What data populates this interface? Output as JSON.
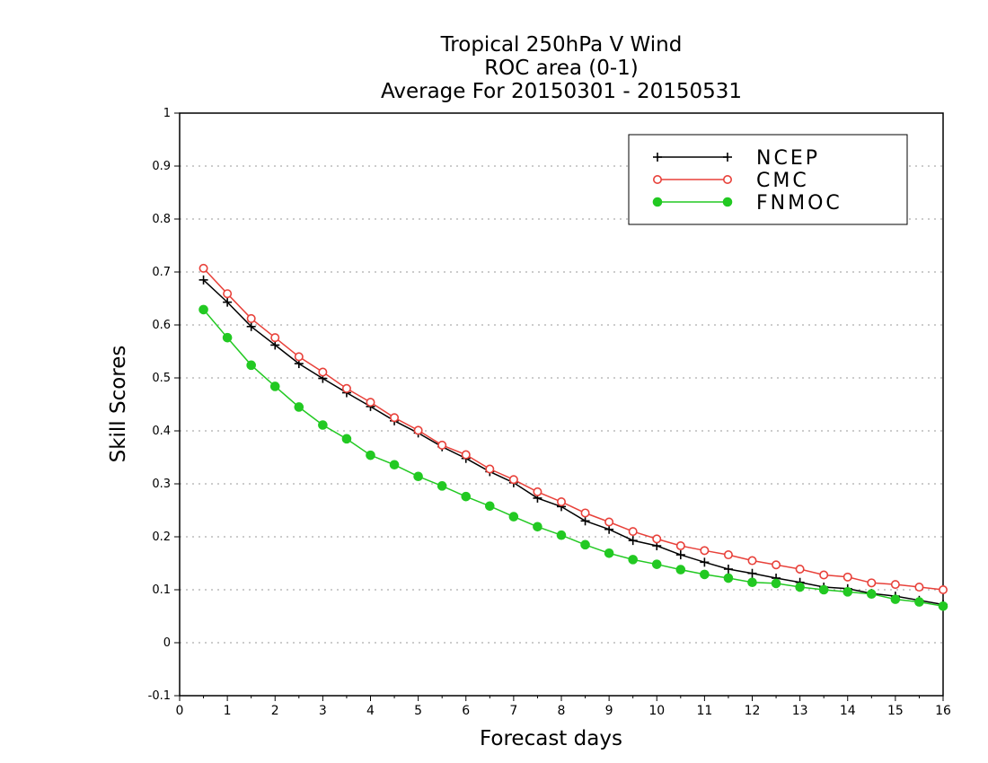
{
  "chart_data": {
    "type": "line",
    "title_lines": [
      "Tropical 250hPa V Wind",
      "ROC area (0-1)",
      "Average For 20150301 - 20150531"
    ],
    "xlabel": "Forecast days",
    "ylabel": "Skill Scores",
    "xlim": [
      0,
      16
    ],
    "ylim": [
      -0.1,
      1
    ],
    "xticks": [
      "0",
      "1",
      "2",
      "3",
      "4",
      "5",
      "6",
      "7",
      "8",
      "9",
      "10",
      "11",
      "12",
      "13",
      "14",
      "15",
      "16"
    ],
    "yticks": [
      "-0.1",
      "0",
      "0.1",
      "0.2",
      "0.3",
      "0.4",
      "0.5",
      "0.6",
      "0.7",
      "0.8",
      "0.9",
      "1"
    ],
    "grid": "horizontal dotted",
    "legend_position": "top-right",
    "x": [
      0.5,
      1,
      1.5,
      2,
      2.5,
      3,
      3.5,
      4,
      4.5,
      5,
      5.5,
      6,
      6.5,
      7,
      7.5,
      8,
      8.5,
      9,
      9.5,
      10,
      10.5,
      11,
      11.5,
      12,
      12.5,
      13,
      13.5,
      14,
      14.5,
      15,
      15.5,
      16
    ],
    "series": [
      {
        "name": "NCEP",
        "color": "#000000",
        "marker": "plus",
        "values": [
          0.685,
          0.643,
          0.597,
          0.562,
          0.527,
          0.499,
          0.472,
          0.446,
          0.419,
          0.396,
          0.37,
          0.348,
          0.323,
          0.302,
          0.273,
          0.257,
          0.23,
          0.214,
          0.193,
          0.183,
          0.166,
          0.152,
          0.139,
          0.131,
          0.122,
          0.114,
          0.105,
          0.102,
          0.093,
          0.088,
          0.08,
          0.072
        ]
      },
      {
        "name": "CMC",
        "color": "#e8413a",
        "marker": "open-circle",
        "values": [
          0.707,
          0.659,
          0.612,
          0.576,
          0.54,
          0.511,
          0.48,
          0.454,
          0.425,
          0.401,
          0.373,
          0.355,
          0.328,
          0.308,
          0.285,
          0.266,
          0.245,
          0.228,
          0.21,
          0.196,
          0.183,
          0.174,
          0.166,
          0.155,
          0.147,
          0.139,
          0.128,
          0.124,
          0.113,
          0.11,
          0.105,
          0.1
        ]
      },
      {
        "name": "FNMOC",
        "color": "#22c922",
        "marker": "filled-circle",
        "values": [
          0.629,
          0.576,
          0.524,
          0.484,
          0.445,
          0.411,
          0.385,
          0.354,
          0.336,
          0.314,
          0.296,
          0.276,
          0.258,
          0.238,
          0.219,
          0.203,
          0.185,
          0.169,
          0.157,
          0.148,
          0.138,
          0.129,
          0.122,
          0.114,
          0.112,
          0.105,
          0.1,
          0.096,
          0.092,
          0.082,
          0.077,
          0.069
        ]
      }
    ]
  }
}
